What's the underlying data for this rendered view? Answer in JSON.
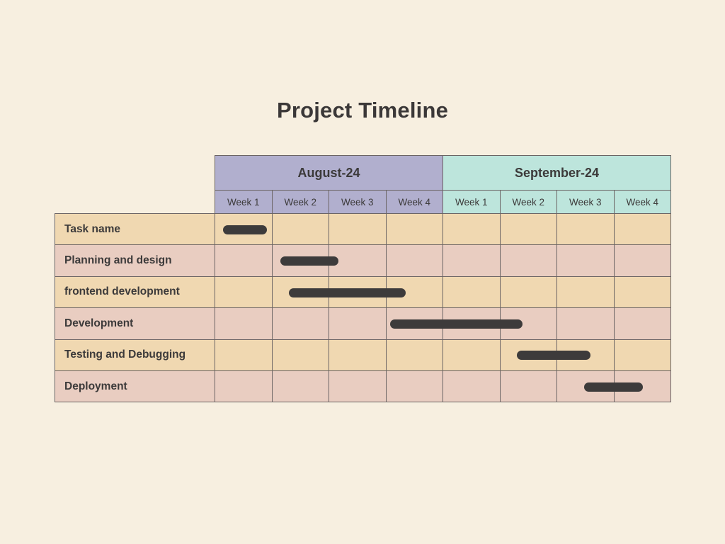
{
  "title": "Project Timeline",
  "months": [
    {
      "label": "August-24",
      "color": "#b1afce"
    },
    {
      "label": "September-24",
      "color": "#bde5dc"
    }
  ],
  "weeks": [
    "Week 1",
    "Week 2",
    "Week 3",
    "Week 4",
    "Week 1",
    "Week 2",
    "Week 3",
    "Week 4"
  ],
  "tasks": [
    {
      "name": "Task name",
      "start_week": 0.15,
      "end_week": 0.92
    },
    {
      "name": "Planning and design",
      "start_week": 1.15,
      "end_week": 2.18
    },
    {
      "name": "frontend development",
      "start_week": 1.3,
      "end_week": 3.35
    },
    {
      "name": "Development",
      "start_week": 3.08,
      "end_week": 5.4
    },
    {
      "name": "Testing and Debugging",
      "start_week": 5.3,
      "end_week": 6.6
    },
    {
      "name": "Deployment",
      "start_week": 6.48,
      "end_week": 7.52
    }
  ],
  "colors": {
    "background": "#f7efe0",
    "row_odd": "#f0d8b1",
    "row_even": "#e9cdc1",
    "bar": "#3d3b3b",
    "grid": "#6b6464"
  }
}
